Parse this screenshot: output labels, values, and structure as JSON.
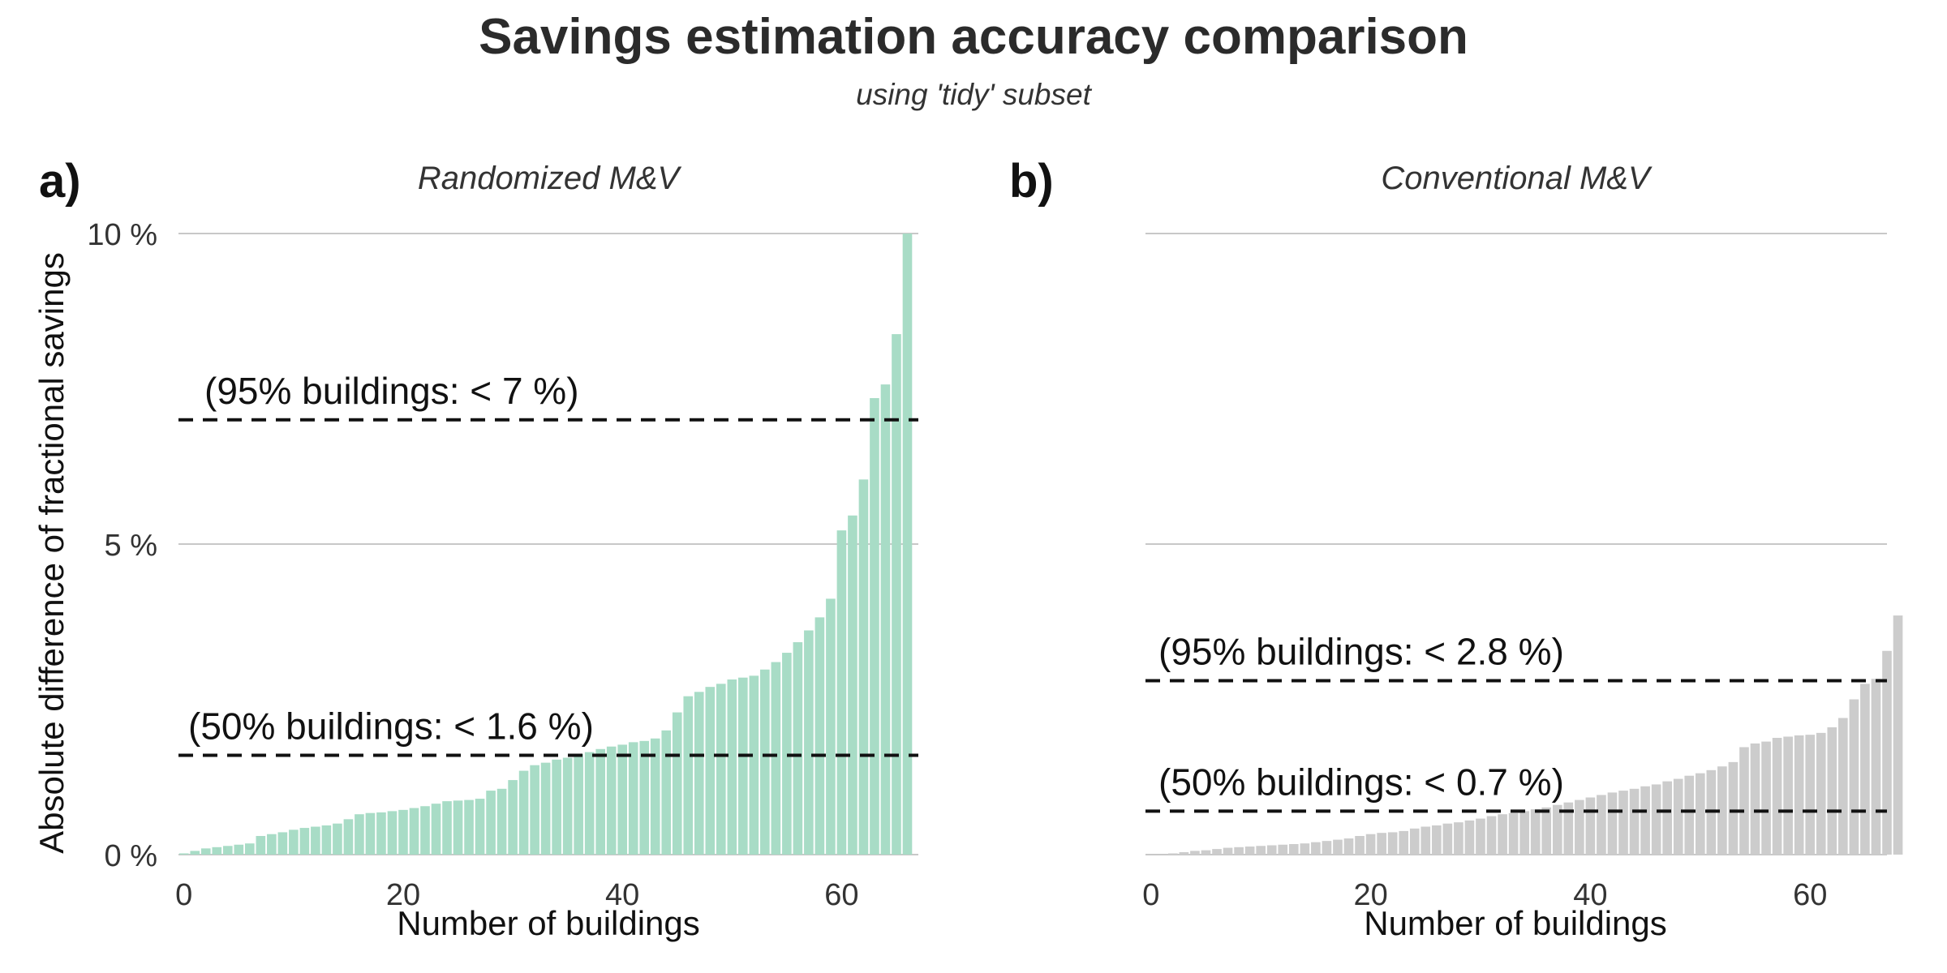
{
  "title": "Savings estimation accuracy comparison",
  "subtitle": "using 'tidy' subset",
  "colors": {
    "randomized": "#a8dcc6",
    "conventional": "#cccccc",
    "grid": "#c8c8c8",
    "reference": "#111111"
  },
  "chart_data": [
    {
      "type": "bar",
      "panel_label": "a)",
      "title": "Randomized M&V",
      "xlabel": "Number of buildings",
      "ylabel": "Absolute difference of fractional savings",
      "xticks": [
        "0",
        "20",
        "40",
        "60"
      ],
      "xtick_values": [
        0,
        20,
        40,
        60
      ],
      "yticks": [
        "0 %",
        "5 %",
        "10 %"
      ],
      "ytick_values": [
        0,
        5,
        10
      ],
      "ylim": [
        0,
        10
      ],
      "xlim": [
        -0.5,
        67
      ],
      "grid": true,
      "values": [
        0.02,
        0.06,
        0.1,
        0.12,
        0.14,
        0.16,
        0.18,
        0.3,
        0.33,
        0.36,
        0.4,
        0.43,
        0.45,
        0.47,
        0.5,
        0.57,
        0.65,
        0.67,
        0.68,
        0.7,
        0.72,
        0.75,
        0.78,
        0.82,
        0.86,
        0.87,
        0.88,
        0.9,
        1.03,
        1.06,
        1.2,
        1.35,
        1.44,
        1.48,
        1.53,
        1.56,
        1.62,
        1.65,
        1.7,
        1.74,
        1.77,
        1.81,
        1.83,
        1.87,
        2.0,
        2.29,
        2.55,
        2.62,
        2.7,
        2.75,
        2.82,
        2.85,
        2.88,
        2.98,
        3.1,
        3.25,
        3.42,
        3.61,
        3.82,
        4.12,
        5.22,
        5.46,
        6.04,
        7.35,
        7.57,
        8.38,
        10.0
      ],
      "reference_lines": [
        {
          "value": 7.0,
          "label": "(95% buildings: < 7 %)"
        },
        {
          "value": 1.6,
          "label": "(50% buildings: < 1.6 %)"
        }
      ]
    },
    {
      "type": "bar",
      "panel_label": "b)",
      "title": "Conventional M&V",
      "xlabel": "Number of buildings",
      "ylabel": "",
      "xticks": [
        "0",
        "20",
        "40",
        "60"
      ],
      "xtick_values": [
        0,
        20,
        40,
        60
      ],
      "yticks": [],
      "ytick_values": [
        0,
        5,
        10
      ],
      "ylim": [
        0,
        10
      ],
      "xlim": [
        -0.5,
        67
      ],
      "grid": true,
      "values": [
        0.0,
        0.0,
        0.02,
        0.04,
        0.06,
        0.07,
        0.09,
        0.11,
        0.12,
        0.13,
        0.14,
        0.15,
        0.16,
        0.17,
        0.18,
        0.2,
        0.22,
        0.24,
        0.26,
        0.3,
        0.33,
        0.35,
        0.36,
        0.38,
        0.42,
        0.45,
        0.47,
        0.5,
        0.52,
        0.55,
        0.58,
        0.62,
        0.65,
        0.67,
        0.7,
        0.73,
        0.76,
        0.8,
        0.84,
        0.88,
        0.92,
        0.96,
        1.0,
        1.03,
        1.06,
        1.1,
        1.13,
        1.18,
        1.22,
        1.27,
        1.31,
        1.36,
        1.42,
        1.49,
        1.73,
        1.79,
        1.82,
        1.88,
        1.9,
        1.92,
        1.93,
        1.96,
        2.05,
        2.2,
        2.5,
        2.75,
        2.83,
        3.28,
        3.85
      ],
      "reference_lines": [
        {
          "value": 2.8,
          "label": "(95% buildings: < 2.8 %)"
        },
        {
          "value": 0.7,
          "label": "(50% buildings: < 0.7 %)"
        }
      ]
    }
  ]
}
